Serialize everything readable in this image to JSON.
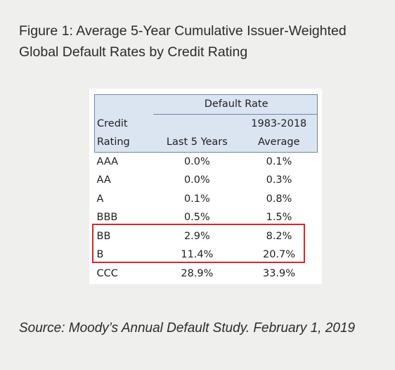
{
  "title": "Figure 1: Average 5-Year Cumulative Issuer-Weighted Global Default Rates by Credit Rating",
  "chart_data": {
    "type": "table",
    "header": {
      "group_label": "Default Rate",
      "credit_label_line1": "Credit",
      "credit_label_line2": "Rating",
      "col1_label": "Last 5 Years",
      "col2_label_line1": "1983-2018",
      "col2_label_line2": "Average"
    },
    "rows": [
      {
        "rating": "AAA",
        "last5": "0.0%",
        "avg": "0.1%"
      },
      {
        "rating": "AA",
        "last5": "0.0%",
        "avg": "0.3%"
      },
      {
        "rating": "A",
        "last5": "0.1%",
        "avg": "0.8%"
      },
      {
        "rating": "BBB",
        "last5": "0.5%",
        "avg": "1.5%"
      },
      {
        "rating": "BB",
        "last5": "2.9%",
        "avg": "8.2%"
      },
      {
        "rating": "B",
        "last5": "11.4%",
        "avg": "20.7%"
      },
      {
        "rating": "CCC",
        "last5": "28.9%",
        "avg": "33.9%"
      }
    ],
    "highlighted_rows": [
      "BB",
      "B"
    ],
    "highlight_color": "#d7262c",
    "header_fill": "#dbe4f1"
  },
  "source": "Source: Moody’s Annual Default Study. February 1, 2019"
}
